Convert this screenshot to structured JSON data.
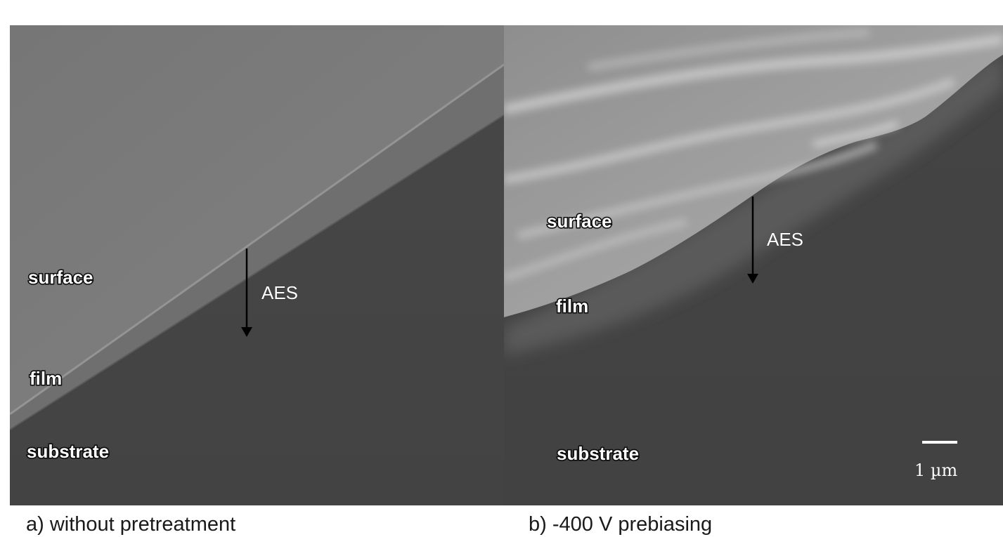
{
  "panels": [
    {
      "caption": "a) without pretreatment",
      "labels": {
        "surface": "surface",
        "film": "film",
        "substrate": "substrate",
        "arrow": "AES"
      }
    },
    {
      "caption": "b) -400 V prebiasing",
      "labels": {
        "surface": "surface",
        "film": "film",
        "substrate": "substrate",
        "arrow": "AES"
      },
      "scale_bar": "1 µm"
    }
  ],
  "colors": {
    "substrate": "#464646",
    "surface_a": "#7c7c7c",
    "film_edge": "#8a8a8a",
    "arrow": "#000000"
  }
}
